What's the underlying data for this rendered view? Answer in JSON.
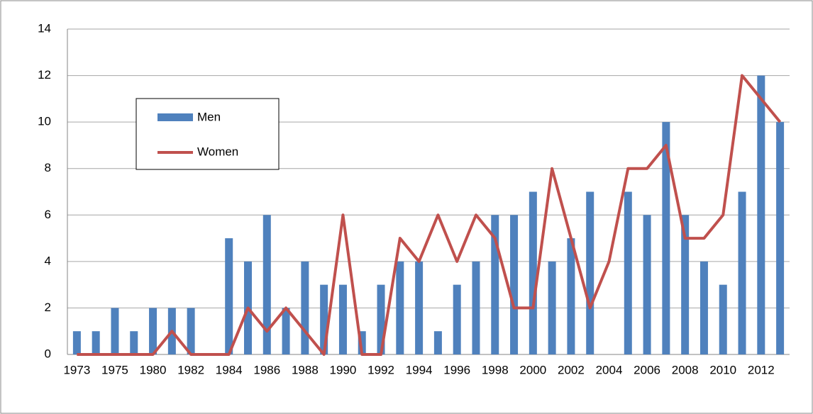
{
  "chart_data": {
    "type": "bar-line",
    "categories": [
      "1973",
      null,
      "1975",
      null,
      "1980",
      null,
      "1982",
      null,
      "1984",
      null,
      "1986",
      null,
      "1988",
      null,
      "1990",
      null,
      "1992",
      null,
      "1994",
      null,
      "1996",
      null,
      "1998",
      null,
      "2000",
      null,
      "2002",
      null,
      "2004",
      null,
      "2006",
      null,
      "2008",
      null,
      "2010",
      null,
      "2012",
      null
    ],
    "series": [
      {
        "name": "Men",
        "type": "bar",
        "color": "#4f81bd",
        "values": [
          1,
          1,
          2,
          1,
          2,
          2,
          2,
          0,
          5,
          4,
          6,
          2,
          4,
          3,
          3,
          1,
          3,
          4,
          4,
          1,
          3,
          4,
          6,
          6,
          7,
          4,
          5,
          7,
          0,
          7,
          6,
          10,
          6,
          4,
          3,
          7,
          12,
          10
        ]
      },
      {
        "name": "Women",
        "type": "line",
        "color": "#c0504d",
        "values": [
          0,
          0,
          0,
          0,
          0,
          1,
          0,
          0,
          0,
          2,
          1,
          2,
          1,
          0,
          6,
          0,
          0,
          5,
          4,
          6,
          4,
          6,
          5,
          2,
          2,
          8,
          5,
          2,
          4,
          8,
          8,
          9,
          5,
          5,
          6,
          12,
          11,
          10
        ]
      }
    ],
    "ylim": [
      0,
      14
    ],
    "yticks": [
      0,
      2,
      4,
      6,
      8,
      10,
      12,
      14
    ],
    "grid": true
  }
}
